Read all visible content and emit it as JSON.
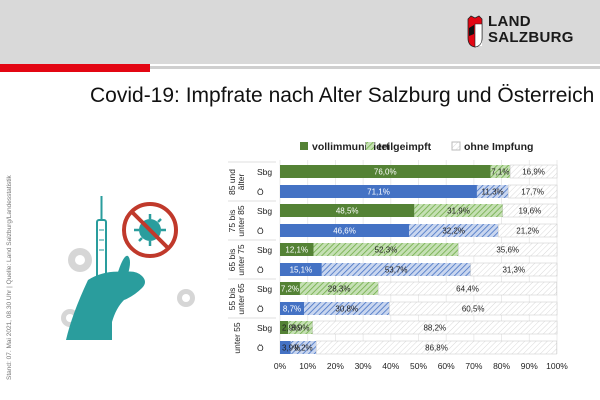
{
  "header": {
    "logo_line1": "LAND",
    "logo_line2": "SALZBURG"
  },
  "title": "Covid-19: Impfrate nach Alter Salzburg und Österreich",
  "side_note": "Stand: 07. Mai 2021, 08.30 Uhr | Quelle: Land Salzburg/Landesstatistik",
  "colors": {
    "brand_red": "#e30613",
    "sbg_full": "#548235",
    "sbg_partial": "#a9d18e",
    "oe_full": "#4472c4",
    "oe_partial": "#8faadc",
    "none_fill": "#ffffff",
    "illustration_teal": "#2a9d9d"
  },
  "chart_data": {
    "type": "bar",
    "orientation": "horizontal",
    "stacked": true,
    "legend": [
      "vollimmunisiert",
      "teilgeimpft",
      "ohne Impfung"
    ],
    "legend_position": "top",
    "xlim": [
      0,
      100
    ],
    "x_ticks": [
      "0%",
      "10%",
      "20%",
      "30%",
      "40%",
      "50%",
      "60%",
      "70%",
      "80%",
      "90%",
      "100%"
    ],
    "groups": [
      {
        "label_lines": [
          "85 und",
          "älter"
        ],
        "rows": [
          {
            "region": "Sbg",
            "values": [
              76.0,
              7.1,
              16.9
            ],
            "labels": [
              "76,0%",
              "7,1%",
              "16,9%"
            ]
          },
          {
            "region": "Ö",
            "values": [
              71.1,
              11.3,
              17.7
            ],
            "labels": [
              "71,1%",
              "11,3%",
              "17,7%"
            ]
          }
        ]
      },
      {
        "label_lines": [
          "75 bis",
          "unter 85"
        ],
        "rows": [
          {
            "region": "Sbg",
            "values": [
              48.5,
              31.9,
              19.6
            ],
            "labels": [
              "48,5%",
              "31,9%",
              "19,6%"
            ]
          },
          {
            "region": "Ö",
            "values": [
              46.6,
              32.2,
              21.2
            ],
            "labels": [
              "46,6%",
              "32,2%",
              "21,2%"
            ]
          }
        ]
      },
      {
        "label_lines": [
          "65 bis",
          "unter 75"
        ],
        "rows": [
          {
            "region": "Sbg",
            "values": [
              12.1,
              52.3,
              35.6
            ],
            "labels": [
              "12,1%",
              "52,3%",
              "35,6%"
            ]
          },
          {
            "region": "Ö",
            "values": [
              15.1,
              53.7,
              31.3
            ],
            "labels": [
              "15,1%",
              "53,7%",
              "31,3%"
            ]
          }
        ]
      },
      {
        "label_lines": [
          "55 bis",
          "unter 65"
        ],
        "rows": [
          {
            "region": "Sbg",
            "values": [
              7.2,
              28.3,
              64.4
            ],
            "labels": [
              "7,2%",
              "28,3%",
              "64,4%"
            ]
          },
          {
            "region": "Ö",
            "values": [
              8.7,
              30.8,
              60.5
            ],
            "labels": [
              "8,7%",
              "30,8%",
              "60,5%"
            ]
          }
        ]
      },
      {
        "label_lines": [
          "unter 55"
        ],
        "rows": [
          {
            "region": "Sbg",
            "values": [
              2.9,
              8.9,
              88.2
            ],
            "labels": [
              "2,9%",
              "8,9%",
              "88,2%"
            ]
          },
          {
            "region": "Ö",
            "values": [
              3.9,
              9.2,
              86.8
            ],
            "labels": [
              "3,9%",
              "9,2%",
              "86,8%"
            ]
          }
        ]
      }
    ]
  }
}
